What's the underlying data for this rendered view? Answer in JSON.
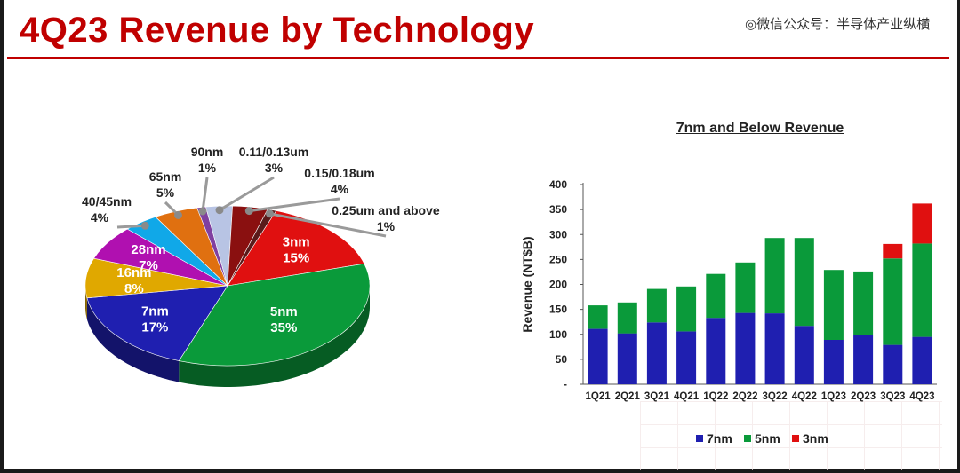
{
  "page": {
    "title": "4Q23 Revenue by Technology",
    "watermark": "◎微信公众号：半导体产业纵横"
  },
  "colors": {
    "title": "#c00000",
    "blue": "#1f1fb0",
    "green": "#0a9a3a",
    "red": "#e01010"
  },
  "chart_data": [
    {
      "type": "pie",
      "title": "",
      "slices": [
        {
          "name": "3nm",
          "pct_label": "15%",
          "value": 15,
          "color": "#e01010",
          "text_color": "#ffffff"
        },
        {
          "name": "5nm",
          "pct_label": "35%",
          "value": 35,
          "color": "#0a9a3a",
          "text_color": "#ffffff"
        },
        {
          "name": "7nm",
          "pct_label": "17%",
          "value": 17,
          "color": "#1f1fb0",
          "text_color": "#ffffff"
        },
        {
          "name": "16nm",
          "pct_label": "8%",
          "value": 8,
          "color": "#e0a800",
          "text_color": "#ffffff"
        },
        {
          "name": "28nm",
          "pct_label": "7%",
          "value": 7,
          "color": "#b010b0",
          "text_color": "#ffffff"
        },
        {
          "name": "40/45nm",
          "pct_label": "4%",
          "value": 4,
          "color": "#10a8e8",
          "text_color": "#222222"
        },
        {
          "name": "65nm",
          "pct_label": "5%",
          "value": 5,
          "color": "#e07010",
          "text_color": "#222222"
        },
        {
          "name": "90nm",
          "pct_label": "1%",
          "value": 1,
          "color": "#8040a0",
          "text_color": "#222222"
        },
        {
          "name": "0.11/0.13um",
          "pct_label": "3%",
          "value": 3,
          "color": "#b8c4e4",
          "text_color": "#222222"
        },
        {
          "name": "0.15/0.18um",
          "pct_label": "4%",
          "value": 4,
          "color": "#8a1010",
          "text_color": "#222222"
        },
        {
          "name": "0.25um and above",
          "pct_label": "1%",
          "value": 1,
          "color": "#5a1a1a",
          "text_color": "#222222"
        }
      ]
    },
    {
      "type": "bar",
      "stacked": true,
      "title": "7nm and Below Revenue",
      "ylabel": "Revenue (NT$B)",
      "xlabel": "",
      "ylim": [
        0,
        400
      ],
      "yticks": [
        "-",
        "50",
        "100",
        "150",
        "200",
        "250",
        "300",
        "350",
        "400"
      ],
      "categories": [
        "1Q21",
        "2Q21",
        "3Q21",
        "4Q21",
        "1Q22",
        "2Q22",
        "3Q22",
        "4Q22",
        "1Q23",
        "2Q23",
        "3Q23",
        "4Q23"
      ],
      "series": [
        {
          "name": "7nm",
          "color": "#1f1fb0",
          "values": [
            111,
            102,
            124,
            106,
            133,
            143,
            142,
            117,
            89,
            98,
            79,
            95
          ]
        },
        {
          "name": "5nm",
          "color": "#0a9a3a",
          "values": [
            47,
            62,
            67,
            90,
            88,
            101,
            151,
            176,
            140,
            128,
            173,
            187
          ]
        },
        {
          "name": "3nm",
          "color": "#e01010",
          "values": [
            0,
            0,
            0,
            0,
            0,
            0,
            0,
            0,
            0,
            0,
            29,
            80
          ]
        }
      ],
      "legend_position": "bottom"
    }
  ]
}
